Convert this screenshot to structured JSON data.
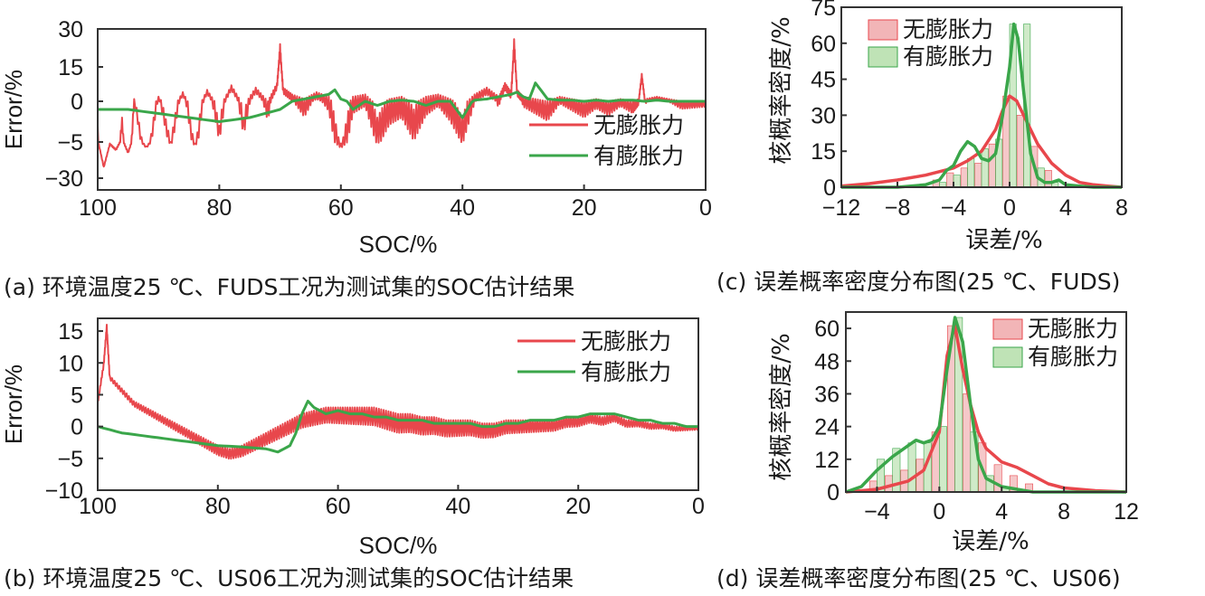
{
  "colors": {
    "red": "#e8474c",
    "green": "#3aa64a",
    "red_fill": "#f2b5b7",
    "green_fill": "#bfe3b6",
    "frame": "#333333"
  },
  "chart_data": [
    {
      "id": "a",
      "type": "line",
      "caption": "(a) 环境温度25 ℃、FUDS工况为测试集的SOC估计结果",
      "xlabel": "SOC/%",
      "ylabel": "Error/%",
      "xlim": [
        100,
        0
      ],
      "xticks": [
        "100",
        "80",
        "60",
        "40",
        "20",
        "0"
      ],
      "yticks": [
        "30",
        "15",
        "0",
        "−5",
        "−30"
      ],
      "legend": [
        "无膨胀力",
        "有膨胀力"
      ],
      "legend_position": "bottom-right",
      "series": [
        {
          "name": "无膨胀力",
          "x": [
            100,
            99,
            98,
            97,
            96,
            95,
            94,
            92,
            90,
            88,
            86,
            84,
            82,
            80,
            78,
            76,
            74,
            72,
            70.5,
            70,
            69.5,
            68,
            66,
            64,
            62,
            60,
            58,
            56,
            54,
            52,
            50,
            48,
            46,
            44,
            42,
            40,
            38,
            36,
            34,
            33,
            32,
            31.5,
            31,
            30,
            28,
            26,
            24,
            22,
            20,
            18,
            16,
            14,
            12,
            11,
            10.5,
            10,
            8,
            6,
            4,
            2,
            0
          ],
          "values": [
            -3,
            -22,
            -6,
            -10,
            -2,
            -12,
            1,
            -8,
            2,
            -5,
            4,
            -6,
            5,
            -3,
            7,
            -2,
            6,
            0,
            8,
            24,
            6,
            3,
            1,
            4,
            2,
            -6,
            2,
            3,
            -2,
            1,
            2,
            -1,
            2,
            3,
            1,
            -2,
            3,
            6,
            2,
            8,
            4,
            26,
            5,
            2,
            1,
            0,
            2,
            1,
            0,
            1,
            0,
            1,
            0,
            1,
            12,
            1,
            2,
            1,
            0,
            0,
            0
          ]
        },
        {
          "name": "有膨胀力",
          "x": [
            100,
            95,
            90,
            85,
            80,
            75,
            70,
            66,
            64,
            62,
            61,
            60,
            58,
            56,
            54,
            52,
            50,
            48,
            46,
            44,
            42,
            40,
            38,
            36,
            34,
            32,
            31,
            30,
            29,
            28,
            26,
            24,
            22,
            20,
            18,
            16,
            14,
            12,
            10,
            8,
            6,
            4,
            2,
            0
          ],
          "values": [
            -1,
            -1,
            -1.5,
            -2,
            -2.5,
            -2,
            -1,
            1,
            2,
            3,
            5,
            1,
            -1,
            0,
            -0.5,
            0,
            0.5,
            0,
            -0.5,
            0,
            0,
            -2,
            0.5,
            1,
            2,
            3,
            4,
            2,
            1,
            8,
            1,
            0.5,
            0.5,
            0,
            0.5,
            0,
            0.5,
            0.5,
            0,
            0.5,
            0,
            0,
            0,
            0
          ]
        }
      ]
    },
    {
      "id": "b",
      "type": "line",
      "caption": "(b) 环境温度25 ℃、US06工况为测试集的SOC估计结果",
      "xlabel": "SOC/%",
      "ylabel": "Error/%",
      "xlim": [
        100,
        0
      ],
      "ylim": [
        -10,
        17
      ],
      "xticks": [
        "100",
        "80",
        "60",
        "40",
        "20",
        "0"
      ],
      "yticks": [
        "15",
        "10",
        "5",
        "0",
        "−5",
        "−10"
      ],
      "legend": [
        "无膨胀力",
        "有膨胀力"
      ],
      "legend_position": "top-right",
      "series": [
        {
          "name": "无膨胀力",
          "x": [
            100,
            99,
            98.5,
            98,
            96,
            94,
            92,
            90,
            88,
            86,
            84,
            82,
            80,
            78,
            76,
            74,
            72,
            70,
            68,
            66,
            64,
            62,
            60,
            58,
            56,
            54,
            52,
            50,
            48,
            46,
            44,
            42,
            40,
            38,
            36,
            34,
            32,
            30,
            28,
            26,
            24,
            22,
            20,
            18,
            16,
            14,
            12,
            10,
            8,
            6,
            4,
            2,
            0
          ],
          "values": [
            4,
            10,
            16,
            8,
            6,
            4,
            3,
            2,
            1,
            0,
            -1,
            -2,
            -3,
            -3.5,
            -3,
            -2,
            -1,
            0,
            1,
            2,
            2.5,
            3,
            3,
            3,
            3,
            3,
            2.5,
            2,
            2,
            1.5,
            1.5,
            1,
            1,
            1,
            0.5,
            0.5,
            1,
            1,
            1,
            1,
            1,
            1.5,
            1.5,
            2,
            1.5,
            2,
            1,
            1,
            0.5,
            0.5,
            0,
            0,
            0
          ]
        },
        {
          "name": "有膨胀力",
          "x": [
            100,
            96,
            92,
            88,
            84,
            80,
            76,
            72,
            70,
            68,
            67,
            66,
            65,
            64,
            62,
            60,
            58,
            56,
            54,
            52,
            50,
            48,
            46,
            44,
            42,
            40,
            38,
            36,
            34,
            32,
            30,
            28,
            26,
            24,
            22,
            20,
            18,
            16,
            14,
            12,
            10,
            8,
            6,
            4,
            2,
            0
          ],
          "values": [
            0,
            -1,
            -1.5,
            -2,
            -2.5,
            -3,
            -3.2,
            -3.5,
            -4,
            -3,
            -1,
            2,
            4,
            3,
            2,
            2.5,
            2,
            2,
            1.5,
            1.5,
            1,
            1,
            1,
            0.5,
            0.5,
            0.5,
            0.5,
            0,
            0,
            0.5,
            0.5,
            1,
            1,
            1,
            1.5,
            1.5,
            2,
            2,
            2,
            1.5,
            1,
            1,
            0.5,
            0.5,
            0,
            0
          ]
        }
      ]
    },
    {
      "id": "c",
      "type": "bar",
      "caption": "(c) 误差概率密度分布图(25 ℃、FUDS)",
      "xlabel": "误差/%",
      "ylabel": "核概率密度/%",
      "xlim": [
        -12,
        8
      ],
      "ylim": [
        0,
        75
      ],
      "xticks": [
        "−12",
        "−8",
        "−4",
        "0",
        "4",
        "8"
      ],
      "yticks": [
        "75",
        "60",
        "45",
        "30",
        "15",
        "0"
      ],
      "legend": [
        "无膨胀力",
        "有膨胀力"
      ],
      "legend_position": "top-right",
      "bins": [
        -5,
        -4,
        -3,
        -2,
        -1,
        0,
        1,
        2,
        3
      ],
      "series": [
        {
          "name": "无膨胀力",
          "values": [
            3,
            6,
            8,
            10,
            18,
            38,
            30,
            17,
            7
          ]
        },
        {
          "name": "有膨胀力",
          "values": [
            2,
            5,
            12,
            16,
            20,
            68,
            68,
            8,
            2
          ]
        }
      ],
      "kde": [
        {
          "name": "无膨胀力",
          "x": [
            -12,
            -10,
            -8,
            -6,
            -4,
            -3,
            -2,
            -1,
            -0.5,
            0,
            0.5,
            1,
            2,
            3,
            4,
            5,
            6,
            7,
            8
          ],
          "values": [
            0.5,
            1.5,
            3,
            5,
            8,
            11,
            15,
            24,
            32,
            38,
            36,
            30,
            18,
            10,
            5,
            2,
            1,
            0.5,
            0
          ]
        },
        {
          "name": "有膨胀力",
          "x": [
            -12,
            -8,
            -6,
            -5,
            -4.5,
            -4,
            -3.5,
            -3,
            -2.5,
            -2,
            -1.5,
            -1,
            -0.5,
            0,
            0.3,
            0.6,
            1,
            1.5,
            2,
            2.5,
            3,
            3.5,
            4,
            5,
            6,
            8
          ],
          "values": [
            0,
            0,
            1,
            3,
            7,
            9,
            15,
            19,
            17,
            12,
            11,
            14,
            30,
            50,
            68,
            62,
            40,
            14,
            4,
            2,
            2,
            3,
            1,
            0.5,
            0,
            0
          ]
        }
      ]
    },
    {
      "id": "d",
      "type": "bar",
      "caption": "(d) 误差概率密度分布图(25 ℃、US06)",
      "xlabel": "误差/%",
      "ylabel": "核概率密度/%",
      "xlim": [
        -6,
        12
      ],
      "ylim": [
        0,
        66
      ],
      "xticks": [
        "−4",
        "0",
        "4",
        "8",
        "12"
      ],
      "yticks": [
        "60",
        "48",
        "36",
        "24",
        "12",
        "0"
      ],
      "legend": [
        "无膨胀力",
        "有膨胀力"
      ],
      "legend_position": "top-right",
      "bins": [
        -4,
        -3,
        -2,
        -1,
        0,
        1,
        2,
        3,
        4,
        5,
        6
      ],
      "series": [
        {
          "name": "无膨胀力",
          "values": [
            4,
            6,
            8,
            12,
            22,
            61,
            36,
            18,
            10,
            6,
            3
          ]
        },
        {
          "name": "有膨胀力",
          "values": [
            12,
            16,
            18,
            18,
            24,
            64,
            22,
            6,
            2,
            1,
            0
          ]
        }
      ],
      "kde": [
        {
          "name": "无膨胀力",
          "x": [
            -6,
            -4,
            -2,
            -1,
            0,
            0.5,
            1,
            1.5,
            2,
            2.5,
            3,
            4,
            5,
            6,
            7,
            8,
            10,
            12
          ],
          "values": [
            0,
            1,
            4,
            8,
            22,
            50,
            61,
            45,
            32,
            22,
            16,
            11,
            9,
            6,
            3,
            1.5,
            0.5,
            0
          ]
        },
        {
          "name": "有膨胀力",
          "x": [
            -6,
            -5,
            -4,
            -3,
            -2.5,
            -2,
            -1.5,
            -1,
            -0.5,
            0,
            0.5,
            1,
            1.5,
            2,
            2.5,
            3,
            4,
            5,
            6,
            8,
            12
          ],
          "values": [
            0,
            2,
            8,
            13,
            15,
            17,
            19,
            18,
            19,
            24,
            45,
            64,
            55,
            32,
            12,
            5,
            2,
            1,
            0,
            0,
            0
          ]
        }
      ]
    }
  ]
}
